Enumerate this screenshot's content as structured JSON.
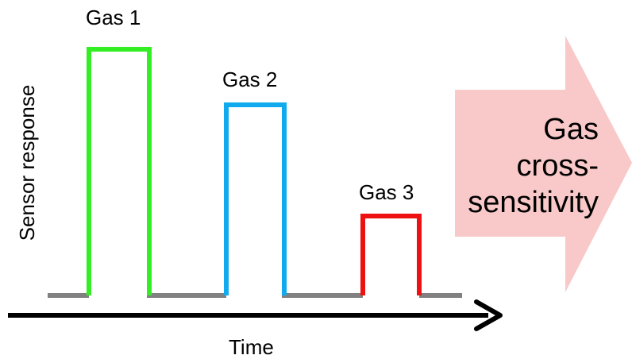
{
  "labels": {
    "gas1": "Gas 1",
    "gas2": "Gas 2",
    "gas3": "Gas 3",
    "y_axis": "Sensor response",
    "x_axis": "Time"
  },
  "callout": {
    "lines": [
      "Gas",
      "cross-",
      "sensitivity"
    ]
  },
  "colors": {
    "gas1": "#33ee22",
    "gas2": "#11aaee",
    "gas3": "#ee1111",
    "baseline": "#808080",
    "axis": "#000000",
    "callout_fill": "#f9c8c8"
  },
  "pulses": [
    {
      "name": "gas1",
      "relative_height": 1.0
    },
    {
      "name": "gas2",
      "relative_height": 0.79
    },
    {
      "name": "gas3",
      "relative_height": 0.34
    }
  ]
}
